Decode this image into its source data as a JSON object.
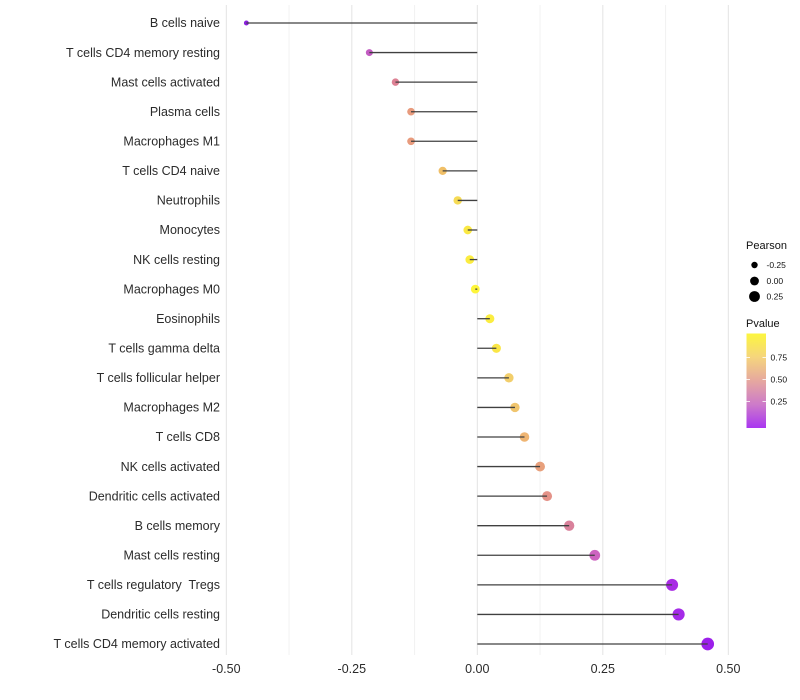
{
  "chart_data": {
    "type": "scatter",
    "subtype": "lollipop-horizontal",
    "title": "",
    "xlabel": "",
    "ylabel": "",
    "background": "#ffffff",
    "grid": "vertical-only",
    "xlim": [
      -0.51,
      0.53
    ],
    "x_ticks": [
      -0.5,
      -0.25,
      0.0,
      0.25,
      0.5
    ],
    "x_tick_labels": [
      "-0.50",
      "-0.25",
      "0.00",
      "0.25",
      "0.50"
    ],
    "x_minor_gridlines": [
      -0.375,
      -0.125,
      0.125,
      0.375
    ],
    "categories": [
      "B cells naive",
      "T cells CD4 memory resting",
      "Mast cells activated",
      "Plasma cells",
      "Macrophages M1",
      "T cells CD4 naive",
      "Neutrophils",
      "Monocytes",
      "NK cells resting",
      "Macrophages M0",
      "Eosinophils",
      "T cells gamma delta",
      "T cells follicular helper",
      "Macrophages M2",
      "T cells CD8",
      "NK cells activated",
      "Dendritic cells activated",
      "B cells memory",
      "Mast cells resting",
      "T cells regulatory  Tregs",
      "Dendritic cells resting",
      "T cells CD4 memory activated"
    ],
    "series": [
      {
        "name": "Pearson",
        "values": [
          -0.46,
          -0.215,
          -0.163,
          -0.132,
          -0.132,
          -0.069,
          -0.039,
          -0.019,
          -0.015,
          -0.004,
          0.025,
          0.038,
          0.063,
          0.075,
          0.094,
          0.125,
          0.139,
          0.183,
          0.234,
          0.388,
          0.401,
          0.459
        ]
      }
    ],
    "point_colors": [
      "#8B22DD",
      "#C35BC2",
      "#DD8194",
      "#E89B7D",
      "#E89B7D",
      "#F0BF67",
      "#F6DB55",
      "#FAE843",
      "#FBEC40",
      "#FDF53A",
      "#FBED41",
      "#FAE646",
      "#F2CE6B",
      "#F0C56E",
      "#EFB573",
      "#E8A07C",
      "#E49288",
      "#D9819B",
      "#CD64C0",
      "#A82BE4",
      "#A52BE8",
      "#9C1FEA"
    ],
    "stem_color": "#404040",
    "gridline_major_color": "#E3E3E3",
    "gridline_minor_color": "#F2F2F2",
    "axis_text_color": "#2b2b2b",
    "legend": {
      "size": {
        "title": "Pearson",
        "labels": [
          "-0.25",
          "0.00",
          "0.25"
        ],
        "values": [
          -0.25,
          0.0,
          0.25
        ],
        "dot_color": "#000000"
      },
      "color": {
        "title": "Pvalue",
        "tick_labels": [
          "0.75",
          "0.50",
          "0.25"
        ],
        "tick_values": [
          0.75,
          0.5,
          0.25
        ],
        "gradient_top_to_bottom": [
          "#FCF63F",
          "#F5D57D",
          "#E6A89F",
          "#CD7BC9",
          "#A936F1"
        ]
      }
    }
  }
}
